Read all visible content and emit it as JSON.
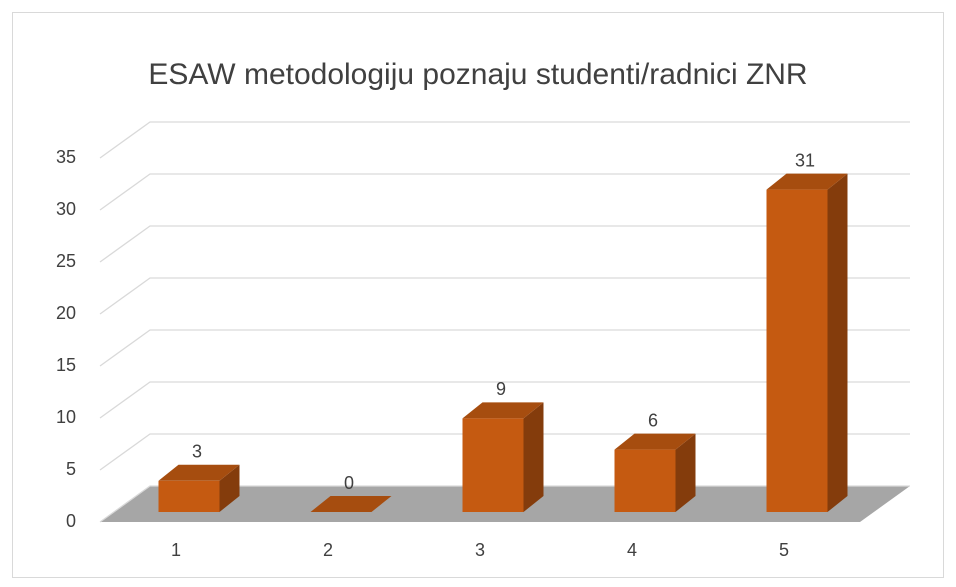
{
  "chart_data": {
    "type": "bar3d",
    "title": "ESAW metodologiju poznaju studenti/radnici ZNR",
    "categories": [
      "1",
      "2",
      "3",
      "4",
      "5"
    ],
    "values": [
      3,
      0,
      9,
      6,
      31
    ],
    "color": "#c55a11",
    "ylim": [
      0,
      35
    ],
    "yticks": [
      0,
      5,
      10,
      15,
      20,
      25,
      30,
      35
    ],
    "grid": true
  }
}
